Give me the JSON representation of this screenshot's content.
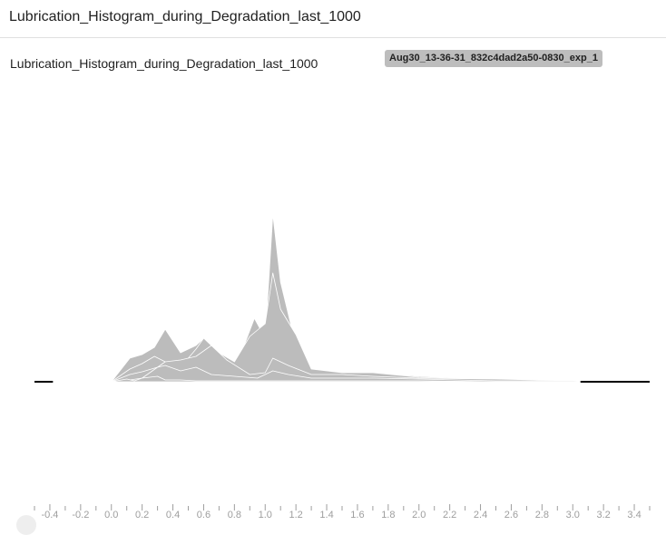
{
  "card": {
    "title": "Lubrication_Histogram_during_Degradation_last_1000"
  },
  "run": {
    "label": "Aug30_13-36-31_832c4dad2a50-0830_exp_1"
  },
  "colors": {
    "fill": "#bcbcbc",
    "outline": "#ffffff",
    "baseline": "#d6d6d6",
    "tail": "#000000",
    "tick": "#9e9e9e"
  },
  "chart_data": {
    "type": "area",
    "title": "Lubrication_Histogram_during_Degradation_last_1000",
    "xlabel": "",
    "ylabel": "",
    "xlim": [
      -0.5,
      3.5
    ],
    "x_ticks": [
      -0.4,
      -0.2,
      0.0,
      0.2,
      0.4,
      0.6,
      0.8,
      1.0,
      1.2,
      1.4,
      1.6,
      1.8,
      2.0,
      2.2,
      2.4,
      2.6,
      2.8,
      3.0,
      3.2,
      3.4
    ],
    "tick_labels": [
      "-0.4",
      "-0.2",
      "0.0",
      "0.2",
      "0.4",
      "0.6",
      "0.8",
      "1.0",
      "1.2",
      "1.4",
      "1.6",
      "1.8",
      "2.0",
      "2.2",
      "2.4",
      "2.6",
      "2.8",
      "3.0",
      "3.2",
      "3.4"
    ],
    "series": [
      {
        "x": [
          -0.5,
          0.0,
          0.1,
          0.15,
          0.2,
          0.3,
          0.35,
          0.45,
          0.55,
          0.7,
          0.85,
          1.1,
          1.3,
          1.7,
          2.0,
          2.5,
          3.0,
          3.5
        ],
        "values": [
          0,
          0,
          3,
          1,
          4,
          6,
          2,
          2,
          1,
          1,
          1,
          1,
          1,
          1,
          1,
          0,
          0,
          0
        ]
      },
      {
        "x": [
          -0.5,
          0.0,
          0.12,
          0.2,
          0.3,
          0.35,
          0.45,
          0.55,
          0.65,
          0.8,
          0.95,
          1.05,
          1.15,
          1.3,
          1.7,
          2.0,
          2.5,
          3.0,
          3.5
        ],
        "values": [
          0,
          0,
          2,
          4,
          16,
          18,
          12,
          16,
          8,
          6,
          4,
          12,
          8,
          4,
          4,
          3,
          1,
          1,
          0
        ]
      },
      {
        "x": [
          -0.5,
          0.0,
          0.12,
          0.2,
          0.3,
          0.35,
          0.45,
          0.55,
          0.65,
          0.75,
          0.9,
          1.0,
          1.05,
          1.15,
          1.3,
          1.5,
          1.7,
          2.0,
          2.5,
          3.0,
          3.5
        ],
        "values": [
          0,
          0,
          8,
          11,
          16,
          22,
          24,
          28,
          40,
          24,
          8,
          10,
          26,
          18,
          8,
          8,
          6,
          4,
          3,
          1,
          0
        ]
      },
      {
        "x": [
          -0.5,
          0.0,
          0.12,
          0.2,
          0.28,
          0.35,
          0.45,
          0.55,
          0.6,
          0.7,
          0.8,
          0.9,
          1.0,
          1.05,
          1.1,
          1.2,
          1.3,
          1.5,
          1.7,
          2.0,
          2.5,
          3.0,
          3.5
        ],
        "values": [
          0,
          0,
          14,
          20,
          28,
          22,
          16,
          36,
          48,
          32,
          22,
          50,
          64,
          120,
          80,
          52,
          14,
          10,
          10,
          5,
          2,
          1,
          0
        ]
      },
      {
        "x": [
          -0.5,
          0.0,
          0.12,
          0.2,
          0.28,
          0.35,
          0.45,
          0.55,
          0.6,
          0.7,
          0.8,
          0.93,
          1.0,
          1.05,
          1.1,
          1.2,
          1.3,
          1.5,
          1.7,
          2.0,
          2.5,
          3.0,
          3.5
        ],
        "values": [
          0,
          0,
          26,
          30,
          38,
          58,
          32,
          40,
          48,
          24,
          12,
          70,
          48,
          185,
          110,
          40,
          10,
          10,
          10,
          6,
          2,
          1,
          0
        ]
      }
    ]
  }
}
